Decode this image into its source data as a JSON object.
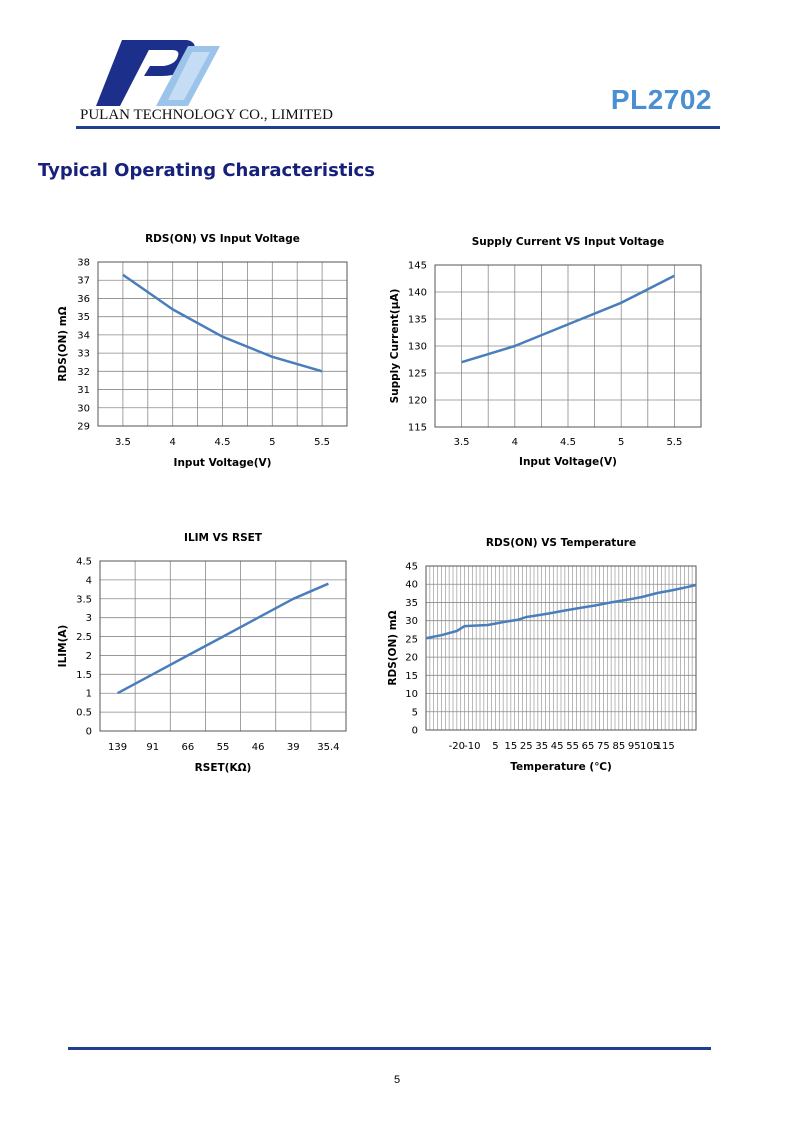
{
  "header": {
    "company": "PULAN TECHNOLOGY CO., LIMITED",
    "product": "PL2702"
  },
  "section_title": "Typical Operating Characteristics",
  "footer": {
    "page_number": "5"
  },
  "colors": {
    "line": "#4a7ebb",
    "rule": "#1f3f8f",
    "title": "#17207a",
    "product": "#4a8fd2"
  },
  "chart_data": [
    {
      "id": "rds-vs-vin",
      "type": "line",
      "title": "RDS(ON) VS Input Voltage",
      "xlabel": "Input Voltage(V)",
      "ylabel": "RDS(ON) mΩ",
      "xlim": [
        3.25,
        5.75
      ],
      "ylim": [
        29,
        38
      ],
      "xticks": [
        3.5,
        4,
        4.5,
        5,
        5.5
      ],
      "yticks": [
        29,
        30,
        31,
        32,
        33,
        34,
        35,
        36,
        37,
        38
      ],
      "grid": true,
      "series": [
        {
          "x": [
            3.5,
            4,
            4.5,
            5,
            5.5
          ],
          "y": [
            37.3,
            35.4,
            33.9,
            32.8,
            32.0
          ]
        }
      ]
    },
    {
      "id": "iq-vs-vin",
      "type": "line",
      "title": "Supply Current VS Input Voltage",
      "xlabel": "Input Voltage(V)",
      "ylabel": "Supply Current(μA)",
      "xlim": [
        3.25,
        5.75
      ],
      "ylim": [
        115,
        145
      ],
      "xticks": [
        3.5,
        4,
        4.5,
        5,
        5.5
      ],
      "yticks": [
        115,
        120,
        125,
        130,
        135,
        140,
        145
      ],
      "grid": true,
      "series": [
        {
          "x": [
            3.5,
            4,
            4.5,
            5,
            5.5
          ],
          "y": [
            127,
            130,
            134,
            138,
            143
          ]
        }
      ]
    },
    {
      "id": "ilim-vs-rset",
      "type": "line",
      "title": "ILIM VS RSET",
      "xlabel": "RSET(KΩ)",
      "ylabel": "ILIM(A)",
      "categories": [
        "139",
        "91",
        "66",
        "55",
        "46",
        "39",
        "35.4"
      ],
      "ylim": [
        0,
        4.5
      ],
      "yticks": [
        0,
        0.5,
        1,
        1.5,
        2,
        2.5,
        3,
        3.5,
        4,
        4.5
      ],
      "grid": true,
      "series": [
        {
          "values": [
            1.0,
            1.5,
            2.0,
            2.5,
            3.0,
            3.5,
            3.9
          ]
        }
      ]
    },
    {
      "id": "rds-vs-temp",
      "type": "line",
      "title": "RDS(ON) VS Temperature",
      "xlabel": "Temperature (℃)",
      "ylabel": "RDS(ON) mΩ",
      "xlim": [
        -40,
        135
      ],
      "ylim": [
        0,
        45
      ],
      "xticks": [
        -20,
        -10,
        5,
        15,
        25,
        35,
        45,
        55,
        65,
        75,
        85,
        95,
        105,
        115
      ],
      "yticks": [
        0,
        5,
        10,
        15,
        20,
        25,
        30,
        35,
        40,
        45
      ],
      "grid": true,
      "series": [
        {
          "x": [
            -40,
            -30,
            -20,
            -15,
            -10,
            0,
            10,
            20,
            25,
            30,
            40,
            50,
            60,
            70,
            80,
            90,
            100,
            110,
            120,
            130,
            135
          ],
          "y": [
            25.2,
            26.0,
            27.2,
            28.5,
            28.6,
            28.8,
            29.6,
            30.3,
            31.0,
            31.3,
            32.0,
            32.8,
            33.5,
            34.2,
            35.0,
            35.7,
            36.5,
            37.6,
            38.4,
            39.3,
            39.8
          ]
        }
      ]
    }
  ]
}
